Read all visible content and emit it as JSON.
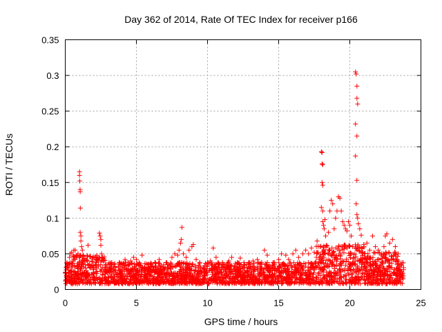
{
  "chart_data": {
    "type": "scatter",
    "title": "Day 362 of 2014, Rate Of TEC Index for receiver p166",
    "xlabel": "GPS time / hours",
    "ylabel": "ROTI / TECUs",
    "xlim": [
      0,
      25
    ],
    "ylim": [
      0,
      0.35
    ],
    "xticks": [
      0,
      5,
      10,
      15,
      20,
      25
    ],
    "yticks": [
      0,
      0.05,
      0.1,
      0.15,
      0.2,
      0.25,
      0.3,
      0.35
    ],
    "xtick_labels": [
      "0",
      "5",
      "10",
      "15",
      "20",
      "25"
    ],
    "ytick_labels": [
      "0",
      "0.05",
      "0.1",
      "0.15",
      "0.2",
      "0.25",
      "0.3",
      "0.35"
    ],
    "grid": true,
    "marker": "+",
    "color": "#ff0000",
    "series": [
      {
        "name": "ROTI",
        "points": [
          [
            0.0,
            0.012
          ],
          [
            0.1,
            0.02
          ],
          [
            0.2,
            0.03
          ],
          [
            0.3,
            0.045
          ],
          [
            0.35,
            0.05
          ],
          [
            0.45,
            0.052
          ],
          [
            0.55,
            0.04
          ],
          [
            0.6,
            0.055
          ],
          [
            0.7,
            0.055
          ],
          [
            0.8,
            0.045
          ],
          [
            0.9,
            0.05
          ],
          [
            1.0,
            0.165
          ],
          [
            1.0,
            0.16
          ],
          [
            1.02,
            0.152
          ],
          [
            1.04,
            0.14
          ],
          [
            1.05,
            0.137
          ],
          [
            1.06,
            0.114
          ],
          [
            1.05,
            0.08
          ],
          [
            1.1,
            0.075
          ],
          [
            1.1,
            0.068
          ],
          [
            1.15,
            0.06
          ],
          [
            1.2,
            0.055
          ],
          [
            1.25,
            0.048
          ],
          [
            1.4,
            0.035
          ],
          [
            1.6,
            0.062
          ],
          [
            1.8,
            0.03
          ],
          [
            2.0,
            0.028
          ],
          [
            2.2,
            0.03
          ],
          [
            2.4,
            0.079
          ],
          [
            2.45,
            0.075
          ],
          [
            2.5,
            0.07
          ],
          [
            2.5,
            0.062
          ],
          [
            2.55,
            0.05
          ],
          [
            2.6,
            0.045
          ],
          [
            2.7,
            0.04
          ],
          [
            3.0,
            0.035
          ],
          [
            3.2,
            0.025
          ],
          [
            3.5,
            0.032
          ],
          [
            3.8,
            0.038
          ],
          [
            4.0,
            0.035
          ],
          [
            4.2,
            0.042
          ],
          [
            4.4,
            0.038
          ],
          [
            4.6,
            0.04
          ],
          [
            4.8,
            0.045
          ],
          [
            5.0,
            0.042
          ],
          [
            5.2,
            0.03
          ],
          [
            5.4,
            0.048
          ],
          [
            5.6,
            0.03
          ],
          [
            5.8,
            0.035
          ],
          [
            6.0,
            0.032
          ],
          [
            6.3,
            0.038
          ],
          [
            6.6,
            0.042
          ],
          [
            6.9,
            0.03
          ],
          [
            7.2,
            0.035
          ],
          [
            7.5,
            0.045
          ],
          [
            7.7,
            0.05
          ],
          [
            7.9,
            0.048
          ],
          [
            8.0,
            0.055
          ],
          [
            8.1,
            0.065
          ],
          [
            8.15,
            0.07
          ],
          [
            8.2,
            0.087
          ],
          [
            8.3,
            0.05
          ],
          [
            8.5,
            0.045
          ],
          [
            8.7,
            0.055
          ],
          [
            8.9,
            0.06
          ],
          [
            9.0,
            0.063
          ],
          [
            9.2,
            0.042
          ],
          [
            9.5,
            0.03
          ],
          [
            9.8,
            0.025
          ],
          [
            10.0,
            0.038
          ],
          [
            10.2,
            0.04
          ],
          [
            10.4,
            0.058
          ],
          [
            10.6,
            0.045
          ],
          [
            10.9,
            0.028
          ],
          [
            11.2,
            0.035
          ],
          [
            11.5,
            0.04
          ],
          [
            11.7,
            0.045
          ],
          [
            11.9,
            0.032
          ],
          [
            12.1,
            0.038
          ],
          [
            12.3,
            0.044
          ],
          [
            12.6,
            0.035
          ],
          [
            12.9,
            0.03
          ],
          [
            13.2,
            0.04
          ],
          [
            13.5,
            0.042
          ],
          [
            13.8,
            0.038
          ],
          [
            14.0,
            0.055
          ],
          [
            14.2,
            0.048
          ],
          [
            14.4,
            0.032
          ],
          [
            14.7,
            0.038
          ],
          [
            15.0,
            0.042
          ],
          [
            15.2,
            0.05
          ],
          [
            15.5,
            0.048
          ],
          [
            15.7,
            0.042
          ],
          [
            16.0,
            0.05
          ],
          [
            16.2,
            0.055
          ],
          [
            16.4,
            0.045
          ],
          [
            16.7,
            0.05
          ],
          [
            16.9,
            0.055
          ],
          [
            17.1,
            0.05
          ],
          [
            17.3,
            0.058
          ],
          [
            17.5,
            0.052
          ],
          [
            17.7,
            0.068
          ],
          [
            17.9,
            0.06
          ],
          [
            18.0,
            0.193
          ],
          [
            18.05,
            0.192
          ],
          [
            18.05,
            0.176
          ],
          [
            18.1,
            0.175
          ],
          [
            18.05,
            0.15
          ],
          [
            18.1,
            0.146
          ],
          [
            18.0,
            0.115
          ],
          [
            18.1,
            0.11
          ],
          [
            18.1,
            0.095
          ],
          [
            18.15,
            0.09
          ],
          [
            18.2,
            0.085
          ],
          [
            18.25,
            0.098
          ],
          [
            18.3,
            0.075
          ],
          [
            18.35,
            0.062
          ],
          [
            18.5,
            0.08
          ],
          [
            18.6,
            0.11
          ],
          [
            18.7,
            0.125
          ],
          [
            18.8,
            0.12
          ],
          [
            18.9,
            0.085
          ],
          [
            19.0,
            0.1
          ],
          [
            19.1,
            0.11
          ],
          [
            19.2,
            0.13
          ],
          [
            19.3,
            0.128
          ],
          [
            19.4,
            0.11
          ],
          [
            19.5,
            0.095
          ],
          [
            19.6,
            0.09
          ],
          [
            19.7,
            0.085
          ],
          [
            19.8,
            0.082
          ],
          [
            19.9,
            0.095
          ],
          [
            20.0,
            0.09
          ],
          [
            20.1,
            0.075
          ],
          [
            20.2,
            0.06
          ],
          [
            20.4,
            0.305
          ],
          [
            20.45,
            0.302
          ],
          [
            20.5,
            0.285
          ],
          [
            20.5,
            0.268
          ],
          [
            20.55,
            0.26
          ],
          [
            20.4,
            0.232
          ],
          [
            20.5,
            0.215
          ],
          [
            20.4,
            0.187
          ],
          [
            20.5,
            0.153
          ],
          [
            20.45,
            0.12
          ],
          [
            20.5,
            0.105
          ],
          [
            20.55,
            0.1
          ],
          [
            20.6,
            0.092
          ],
          [
            20.7,
            0.085
          ],
          [
            20.8,
            0.076
          ],
          [
            21.0,
            0.06
          ],
          [
            21.2,
            0.065
          ],
          [
            21.4,
            0.055
          ],
          [
            21.6,
            0.075
          ],
          [
            21.8,
            0.06
          ],
          [
            22.0,
            0.055
          ],
          [
            22.2,
            0.048
          ],
          [
            22.4,
            0.06
          ],
          [
            22.5,
            0.075
          ],
          [
            22.6,
            0.078
          ],
          [
            22.8,
            0.065
          ],
          [
            23.0,
            0.07
          ],
          [
            23.2,
            0.06
          ],
          [
            23.4,
            0.05
          ],
          [
            23.6,
            0.035
          ],
          [
            23.75,
            0.015
          ]
        ]
      }
    ]
  }
}
